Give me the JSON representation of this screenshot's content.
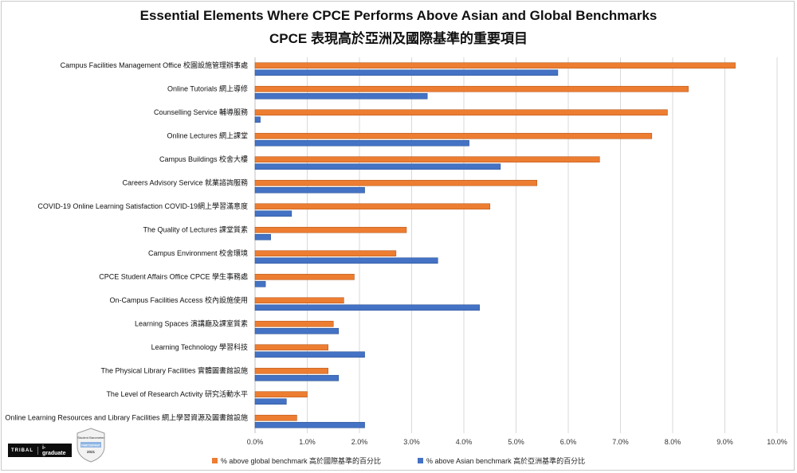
{
  "title_en": "Essential Elements Where CPCE Performs Above Asian and Global Benchmarks",
  "title_zh": "CPCE 表現高於亞洲及國際基準的重要項目",
  "chart_data": {
    "type": "bar",
    "orientation": "horizontal",
    "title": "Essential Elements Where CPCE Performs Above Asian and Global Benchmarks / CPCE 表現高於亞洲及國際基準的重要項目",
    "xlabel": "",
    "ylabel": "",
    "xlim": [
      0,
      10
    ],
    "grid": true,
    "legend_position": "bottom",
    "tick_labels": [
      "0.0%",
      "1.0%",
      "2.0%",
      "3.0%",
      "4.0%",
      "5.0%",
      "6.0%",
      "7.0%",
      "8.0%",
      "9.0%",
      "10.0%"
    ],
    "categories": [
      "Campus Facilities Management Office 校園設施管理辦事處",
      "Online Tutorials 網上導修",
      "Counselling Service 輔導服務",
      "Online Lectures 網上課堂",
      "Campus Buildings 校舍大樓",
      "Careers Advisory Service 就業諮詢服務",
      "COVID-19 Online Learning Satisfaction COVID-19網上學習滿意度",
      "The Quality of Lectures 課堂質素",
      "Campus Environment 校舍環境",
      "CPCE Student Affairs Office CPCE 學生事務處",
      "On-Campus Facilities Access 校內設施使用",
      "Learning Spaces 演講廳及課室質素",
      "Learning Technology 學習科技",
      "The Physical Library Facilities 實體圖書館設施",
      "The Level of Research Activity 研究活動水平",
      "Online Learning Resources and Library Facilities 網上學習資源及圖書館設施"
    ],
    "series": [
      {
        "name": "% above global benchmark 高於國際基準的百分比",
        "color": "#ED7D31",
        "values": [
          9.2,
          8.3,
          7.9,
          7.6,
          6.6,
          5.4,
          4.5,
          2.9,
          2.7,
          1.9,
          1.7,
          1.5,
          1.4,
          1.4,
          1.0,
          0.8
        ]
      },
      {
        "name": "% above Asian benchmark 高於亞洲基準的百分比",
        "color": "#4472C4",
        "values": [
          5.8,
          3.3,
          0.1,
          4.1,
          4.7,
          2.1,
          0.7,
          0.3,
          3.5,
          0.2,
          4.3,
          1.6,
          2.1,
          1.6,
          0.6,
          2.1
        ]
      }
    ]
  },
  "logo": {
    "brand": "TRIBAL",
    "product": "i-graduate",
    "badge_line1": "Student Barometer",
    "badge_line2": "PARTICIPANT",
    "badge_year": "2021"
  },
  "colors": {
    "grid": "#d9d9d9",
    "axis": "#bfbfbf"
  }
}
